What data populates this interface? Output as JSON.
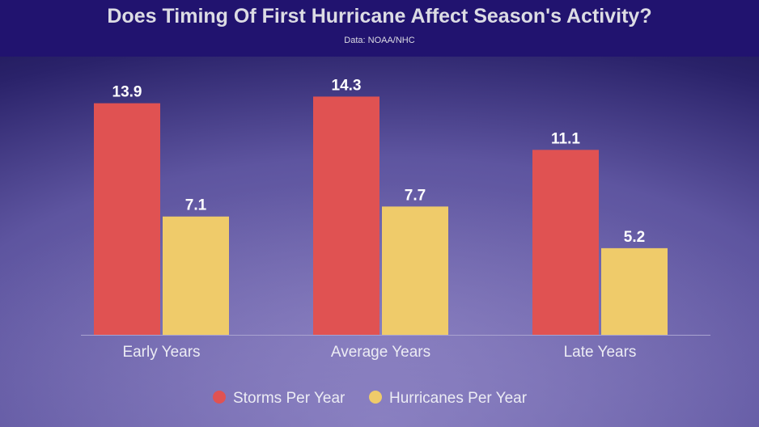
{
  "chart_data": {
    "type": "bar",
    "title": "Does Timing Of First Hurricane Affect Season's Activity?",
    "subtitle": "Data: NOAA/NHC",
    "categories": [
      "Early Years",
      "Average Years",
      "Late Years"
    ],
    "series": [
      {
        "name": "Storms Per Year",
        "color": "#e05252",
        "values": [
          13.9,
          14.3,
          11.1
        ]
      },
      {
        "name": "Hurricanes Per Year",
        "color": "#efcb6a",
        "values": [
          7.1,
          7.7,
          5.2
        ]
      }
    ],
    "ylim": [
      0,
      14.3
    ],
    "grid": false,
    "legend": "bottom"
  }
}
